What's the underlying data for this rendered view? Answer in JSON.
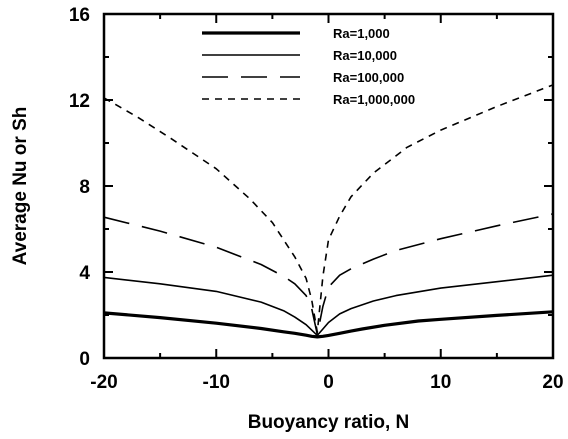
{
  "chart_data": {
    "type": "line",
    "title": "",
    "xlabel": "Buoyancy ratio, N",
    "ylabel": "Average Nu or Sh",
    "xlim": [
      -20,
      20
    ],
    "ylim": [
      0,
      16
    ],
    "x_ticks": [
      "-20",
      "-10",
      "0",
      "10",
      "20"
    ],
    "y_ticks": [
      "0",
      "4",
      "8",
      "12",
      "16"
    ],
    "grid": false,
    "legend_position": "top-center",
    "series": [
      {
        "name": "Ra=1,000",
        "style": "thick-solid",
        "points": [
          [
            -20,
            2.1
          ],
          [
            -15,
            1.88
          ],
          [
            -10,
            1.62
          ],
          [
            -6,
            1.37
          ],
          [
            -4,
            1.22
          ],
          [
            -3,
            1.15
          ],
          [
            -2,
            1.06
          ],
          [
            -1.5,
            1.01
          ],
          [
            -1,
            0.98
          ],
          [
            -0.5,
            1.01
          ],
          [
            0,
            1.05
          ],
          [
            1,
            1.15
          ],
          [
            2,
            1.25
          ],
          [
            3,
            1.35
          ],
          [
            5,
            1.52
          ],
          [
            8,
            1.72
          ],
          [
            10,
            1.8
          ],
          [
            15,
            1.98
          ],
          [
            20,
            2.15
          ]
        ]
      },
      {
        "name": "Ra=10,000",
        "style": "thin-solid",
        "points": [
          [
            -20,
            3.75
          ],
          [
            -15,
            3.45
          ],
          [
            -10,
            3.1
          ],
          [
            -6,
            2.6
          ],
          [
            -4,
            2.2
          ],
          [
            -3,
            1.9
          ],
          [
            -2,
            1.55
          ],
          [
            -1.5,
            1.3
          ],
          [
            -1,
            1.05
          ],
          [
            -0.5,
            1.35
          ],
          [
            0,
            1.65
          ],
          [
            1,
            2.05
          ],
          [
            2,
            2.3
          ],
          [
            4,
            2.65
          ],
          [
            6,
            2.9
          ],
          [
            10,
            3.25
          ],
          [
            15,
            3.55
          ],
          [
            20,
            3.85
          ]
        ]
      },
      {
        "name": "Ra=100,000",
        "style": "long-dash",
        "points": [
          [
            -20,
            6.55
          ],
          [
            -15,
            5.9
          ],
          [
            -10,
            5.15
          ],
          [
            -6,
            4.35
          ],
          [
            -4,
            3.8
          ],
          [
            -3,
            3.45
          ],
          [
            -2,
            2.9
          ],
          [
            -1.5,
            2.3
          ],
          [
            -1,
            1.1
          ],
          [
            -0.5,
            2.4
          ],
          [
            0,
            3.3
          ],
          [
            1,
            3.85
          ],
          [
            2,
            4.15
          ],
          [
            4,
            4.6
          ],
          [
            6,
            5.0
          ],
          [
            10,
            5.55
          ],
          [
            15,
            6.15
          ],
          [
            20,
            6.7
          ]
        ]
      },
      {
        "name": "Ra=1,000,000",
        "style": "short-dash",
        "points": [
          [
            -20,
            12.1
          ],
          [
            -17,
            11.2
          ],
          [
            -14,
            10.2
          ],
          [
            -10,
            8.8
          ],
          [
            -7,
            7.4
          ],
          [
            -5,
            6.3
          ],
          [
            -3,
            4.7
          ],
          [
            -2,
            3.7
          ],
          [
            -1.5,
            2.7
          ],
          [
            -1,
            1.2
          ],
          [
            -0.5,
            3.8
          ],
          [
            0,
            5.5
          ],
          [
            1,
            6.6
          ],
          [
            2,
            7.5
          ],
          [
            4,
            8.6
          ],
          [
            7,
            9.8
          ],
          [
            10,
            10.6
          ],
          [
            15,
            11.7
          ],
          [
            20,
            12.7
          ]
        ]
      }
    ]
  }
}
